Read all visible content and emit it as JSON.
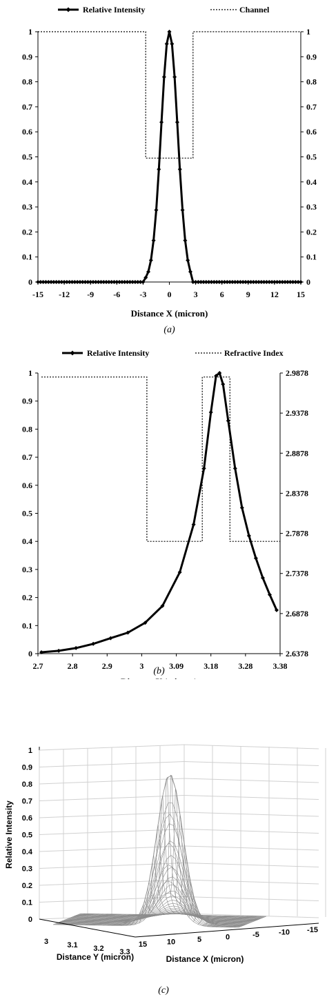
{
  "chart_data": [
    {
      "type": "line",
      "caption": "(a)",
      "xlabel": "Distance X (micron)",
      "x_ticks": [
        "-15",
        "-12",
        "-9",
        "-6",
        "-3",
        "0",
        "3",
        "6",
        "9",
        "12",
        "15"
      ],
      "xlim": [
        -15,
        15
      ],
      "ylim": [
        0,
        1
      ],
      "y_ticks": [
        "0",
        "0.1",
        "0.2",
        "0.3",
        "0.4",
        "0.5",
        "0.6",
        "0.7",
        "0.8",
        "0.9",
        "1"
      ],
      "y2_ticks": [
        "0",
        "0.1",
        "0.2",
        "0.3",
        "0.4",
        "0.5",
        "0.6",
        "0.7",
        "0.8",
        "0.9",
        "1"
      ],
      "legend": [
        "Relative Intensity",
        "Channel"
      ],
      "legend_position": "top",
      "series": [
        {
          "name": "Relative Intensity",
          "style": "solid-with-diamond-markers",
          "model": "gaussian",
          "center": 0,
          "sigma": 0.95,
          "support": [
            -2.7,
            2.7
          ],
          "x_range": [
            -15,
            15
          ],
          "step": 0.3
        },
        {
          "name": "Channel",
          "style": "dotted-step",
          "x": [
            -15,
            -2.7,
            -2.7,
            2.7,
            2.7,
            15
          ],
          "y": [
            1,
            1,
            0.495,
            0.495,
            1,
            1
          ]
        }
      ]
    },
    {
      "type": "line",
      "caption": "(b)",
      "xlabel": "Distance Y (micron)",
      "x_ticks": [
        "2.7",
        "2.8",
        "2.9",
        "3",
        "3.09",
        "3.18",
        "3.28",
        "3.38"
      ],
      "xlim": [
        2.69,
        3.39
      ],
      "ylim": [
        0,
        1
      ],
      "y_ticks": [
        "0",
        "0.1",
        "0.2",
        "0.3",
        "0.4",
        "0.5",
        "0.6",
        "0.7",
        "0.8",
        "0.9",
        "1"
      ],
      "y2_ticks": [
        "2.6378",
        "2.6878",
        "2.7378",
        "2.7878",
        "2.8378",
        "2.8878",
        "2.9378",
        "2.9878"
      ],
      "legend": [
        "Relative Intensity",
        "Refractive Index"
      ],
      "legend_position": "top",
      "series": [
        {
          "name": "Relative Intensity",
          "style": "solid-with-diamond-markers",
          "x": [
            2.7,
            2.75,
            2.8,
            2.85,
            2.9,
            2.95,
            3.0,
            3.05,
            3.1,
            3.14,
            3.17,
            3.19,
            3.205,
            3.215,
            3.225,
            3.24,
            3.26,
            3.28,
            3.3,
            3.32,
            3.34,
            3.36,
            3.38
          ],
          "y": [
            0.005,
            0.01,
            0.02,
            0.035,
            0.055,
            0.075,
            0.11,
            0.17,
            0.29,
            0.46,
            0.66,
            0.86,
            0.99,
            1.0,
            0.96,
            0.83,
            0.66,
            0.52,
            0.42,
            0.34,
            0.27,
            0.21,
            0.155
          ]
        },
        {
          "name": "Refractive Index",
          "style": "dotted-step",
          "x": [
            2.7,
            3.005,
            3.005,
            3.165,
            3.165,
            3.245,
            3.245,
            3.39
          ],
          "y": [
            2.9828,
            2.9828,
            2.7778,
            2.7778,
            2.9828,
            2.9828,
            2.7778,
            2.7778
          ]
        }
      ]
    },
    {
      "type": "surface3d",
      "caption": "(c)",
      "zlabel": "Relative Intensity",
      "xlabel": "Distance X (micron)",
      "ylabel": "Distance Y (micron)",
      "z_ticks": [
        "0",
        "0.1",
        "0.2",
        "0.3",
        "0.4",
        "0.5",
        "0.6",
        "0.7",
        "0.8",
        "0.9",
        "1"
      ],
      "y_ticks": [
        "3",
        "3.1",
        "3.2",
        "3.3"
      ],
      "x_ticks": [
        "15",
        "10",
        "5",
        "0",
        "-5",
        "-10",
        "-15"
      ],
      "colors": {
        "mesh": "#8c8c8c",
        "grid": "#d0d0d0"
      }
    }
  ]
}
